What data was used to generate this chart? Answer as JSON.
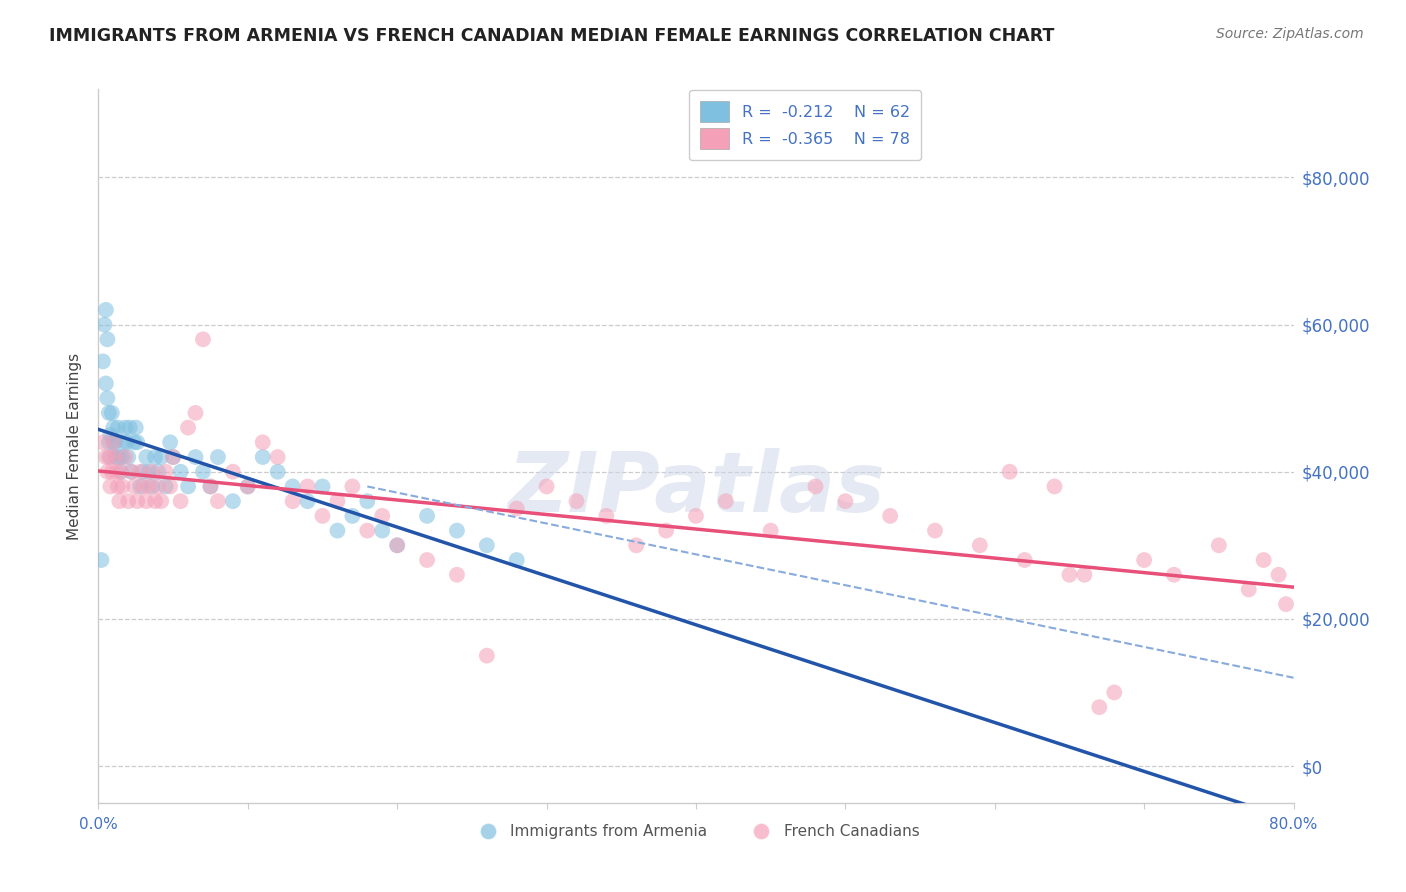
{
  "title": "IMMIGRANTS FROM ARMENIA VS FRENCH CANADIAN MEDIAN FEMALE EARNINGS CORRELATION CHART",
  "source": "Source: ZipAtlas.com",
  "ylabel": "Median Female Earnings",
  "xlim": [
    0.0,
    0.8
  ],
  "ylim": [
    -5000,
    92000
  ],
  "ytick_vals": [
    0,
    20000,
    40000,
    60000,
    80000
  ],
  "ytick_labels": [
    "$0",
    "$20,000",
    "$40,000",
    "$60,000",
    "$80,000"
  ],
  "xtick_vals": [
    0.0,
    0.1,
    0.2,
    0.3,
    0.4,
    0.5,
    0.6,
    0.7,
    0.8
  ],
  "xtick_labels": [
    "0.0%",
    "",
    "",
    "",
    "",
    "",
    "",
    "",
    "80.0%"
  ],
  "blue_r_label": "R = -0.212",
  "blue_n_label": "N = 62",
  "pink_r_label": "R = -0.365",
  "pink_n_label": "N = 78",
  "blue_color": "#7fbfdf",
  "pink_color": "#f4a0b8",
  "blue_line_color": "#2255aa",
  "pink_line_color": "#e8507a",
  "dashed_color": "#88aadd",
  "grid_color": "#cccccc",
  "label_color": "#4472c4",
  "title_color": "#222222",
  "source_color": "#777777",
  "watermark_color": "#ccd5e8",
  "legend_edge_color": "#cccccc",
  "blue_x": [
    0.002,
    0.003,
    0.004,
    0.005,
    0.005,
    0.006,
    0.006,
    0.007,
    0.007,
    0.008,
    0.008,
    0.009,
    0.01,
    0.01,
    0.011,
    0.012,
    0.013,
    0.014,
    0.015,
    0.016,
    0.017,
    0.018,
    0.019,
    0.02,
    0.021,
    0.022,
    0.024,
    0.025,
    0.026,
    0.028,
    0.03,
    0.032,
    0.034,
    0.036,
    0.038,
    0.04,
    0.042,
    0.045,
    0.048,
    0.05,
    0.055,
    0.06,
    0.065,
    0.07,
    0.075,
    0.08,
    0.09,
    0.1,
    0.11,
    0.12,
    0.13,
    0.14,
    0.15,
    0.16,
    0.17,
    0.18,
    0.19,
    0.2,
    0.22,
    0.24,
    0.26,
    0.28
  ],
  "blue_y": [
    28000,
    55000,
    60000,
    62000,
    52000,
    50000,
    58000,
    48000,
    44000,
    45000,
    42000,
    48000,
    44000,
    46000,
    44000,
    42000,
    46000,
    42000,
    40000,
    42000,
    44000,
    46000,
    44000,
    42000,
    46000,
    40000,
    44000,
    46000,
    44000,
    38000,
    40000,
    42000,
    40000,
    38000,
    42000,
    40000,
    42000,
    38000,
    44000,
    42000,
    40000,
    38000,
    42000,
    40000,
    38000,
    42000,
    36000,
    38000,
    42000,
    40000,
    38000,
    36000,
    38000,
    32000,
    34000,
    36000,
    32000,
    30000,
    34000,
    32000,
    30000,
    28000
  ],
  "pink_x": [
    0.003,
    0.005,
    0.006,
    0.007,
    0.008,
    0.009,
    0.01,
    0.011,
    0.012,
    0.013,
    0.014,
    0.015,
    0.016,
    0.018,
    0.02,
    0.022,
    0.024,
    0.026,
    0.028,
    0.03,
    0.032,
    0.034,
    0.036,
    0.038,
    0.04,
    0.042,
    0.045,
    0.048,
    0.05,
    0.055,
    0.06,
    0.065,
    0.07,
    0.075,
    0.08,
    0.09,
    0.1,
    0.11,
    0.12,
    0.13,
    0.14,
    0.15,
    0.16,
    0.17,
    0.18,
    0.19,
    0.2,
    0.22,
    0.24,
    0.26,
    0.28,
    0.3,
    0.32,
    0.34,
    0.36,
    0.38,
    0.4,
    0.42,
    0.45,
    0.48,
    0.5,
    0.53,
    0.56,
    0.59,
    0.61,
    0.62,
    0.64,
    0.65,
    0.66,
    0.7,
    0.72,
    0.75,
    0.77,
    0.78,
    0.79,
    0.795,
    0.67,
    0.68
  ],
  "pink_y": [
    44000,
    42000,
    40000,
    42000,
    38000,
    40000,
    44000,
    42000,
    40000,
    38000,
    36000,
    40000,
    38000,
    42000,
    36000,
    40000,
    38000,
    36000,
    40000,
    38000,
    36000,
    38000,
    40000,
    36000,
    38000,
    36000,
    40000,
    38000,
    42000,
    36000,
    46000,
    48000,
    58000,
    38000,
    36000,
    40000,
    38000,
    44000,
    42000,
    36000,
    38000,
    34000,
    36000,
    38000,
    32000,
    34000,
    30000,
    28000,
    26000,
    15000,
    35000,
    38000,
    36000,
    34000,
    30000,
    32000,
    34000,
    36000,
    32000,
    38000,
    36000,
    34000,
    32000,
    30000,
    40000,
    28000,
    38000,
    26000,
    26000,
    28000,
    26000,
    30000,
    24000,
    28000,
    26000,
    22000,
    8000,
    10000
  ]
}
